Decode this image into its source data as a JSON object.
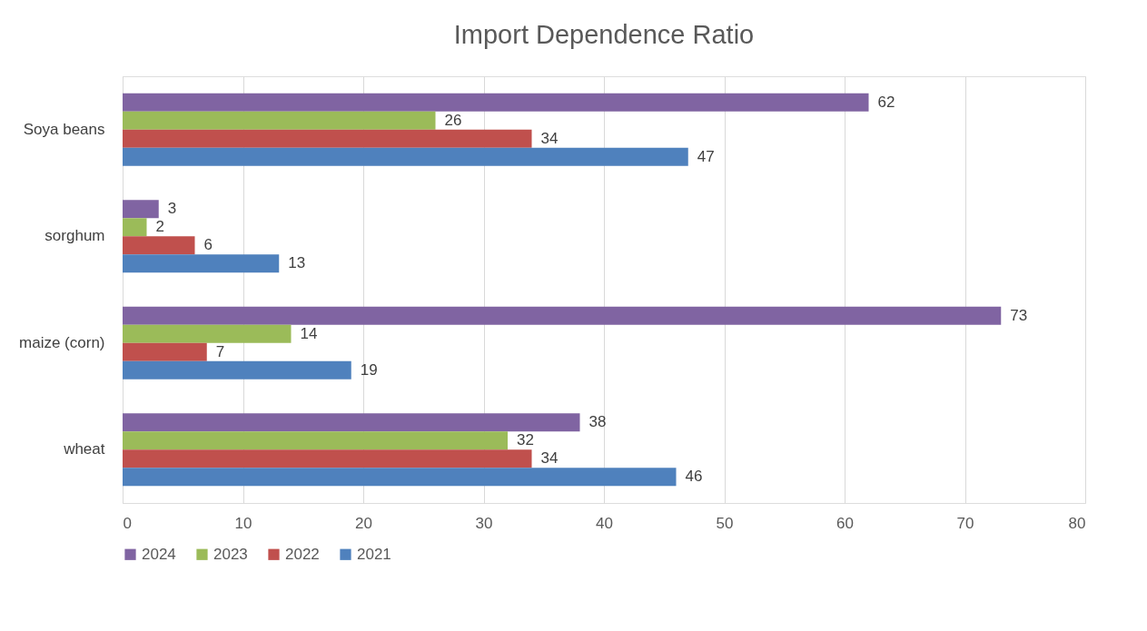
{
  "chart_data": {
    "type": "bar",
    "orientation": "horizontal",
    "title": "Import Dependence Ratio",
    "categories": [
      "Soya beans",
      "sorghum",
      "maize (corn)",
      "wheat"
    ],
    "series": [
      {
        "name": "2024",
        "color": "#8064a2",
        "values": [
          62,
          3,
          73,
          38
        ]
      },
      {
        "name": "2023",
        "color": "#9bbb59",
        "values": [
          26,
          2,
          14,
          32
        ]
      },
      {
        "name": "2022",
        "color": "#c0504d",
        "values": [
          34,
          6,
          7,
          34
        ]
      },
      {
        "name": "2021",
        "color": "#4f81bd",
        "values": [
          47,
          13,
          19,
          46
        ]
      }
    ],
    "xlim": [
      0,
      80
    ],
    "xticks": [
      0,
      10,
      20,
      30,
      40,
      50,
      60,
      70,
      80
    ],
    "grid": "x",
    "legend": "bottom",
    "data_labels": true
  }
}
